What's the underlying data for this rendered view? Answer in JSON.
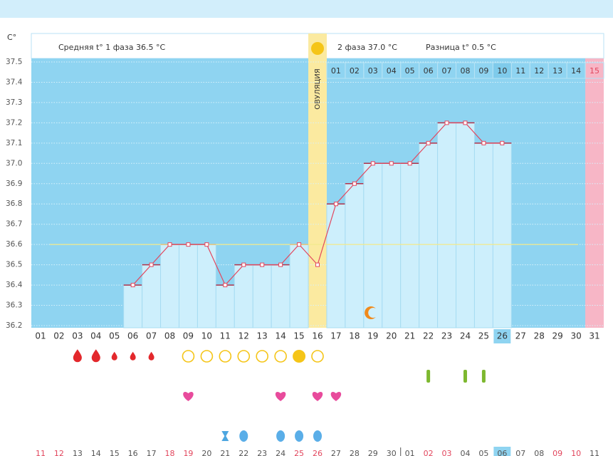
{
  "chart_data": {
    "type": "line",
    "y_label": "C°",
    "header": {
      "phase1": "Средняя t° 1 фаза 36.5 °C",
      "phase2": "2 фаза 37.0 °C",
      "difference": "Разница t° 0.5 °C"
    },
    "ovulation_label": "ОВУЛЯЦИЯ",
    "categories": [
      "01",
      "02",
      "03",
      "04",
      "05",
      "06",
      "07",
      "08",
      "09",
      "10",
      "11",
      "12",
      "13",
      "14",
      "15",
      "16",
      "17",
      "18",
      "19",
      "20",
      "21",
      "22",
      "23",
      "24",
      "25",
      "26",
      "27",
      "28",
      "29",
      "30",
      "31"
    ],
    "phase2_days": [
      null,
      null,
      null,
      null,
      null,
      null,
      null,
      null,
      null,
      null,
      null,
      null,
      null,
      null,
      null,
      null,
      "01",
      "02",
      "03",
      "04",
      "05",
      "06",
      "07",
      "08",
      "09",
      "10",
      "11",
      "12",
      "13",
      "14",
      "15"
    ],
    "column_styles": [
      null,
      null,
      null,
      null,
      null,
      null,
      null,
      null,
      null,
      null,
      null,
      null,
      null,
      null,
      null,
      "ovulation",
      null,
      null,
      null,
      null,
      null,
      null,
      null,
      null,
      null,
      "today",
      null,
      null,
      null,
      null,
      "pink"
    ],
    "series": [
      {
        "color": "#e2475e",
        "values": [
          null,
          null,
          null,
          null,
          null,
          36.4,
          36.5,
          36.6,
          36.6,
          36.6,
          36.4,
          36.5,
          36.5,
          36.5,
          36.6,
          36.5,
          36.8,
          36.9,
          37.0,
          37.0,
          37.0,
          37.1,
          37.2,
          37.2,
          37.1,
          37.1,
          null,
          null,
          null,
          null,
          null
        ]
      }
    ],
    "coverline": 36.6,
    "ylim": [
      36.2,
      37.5
    ],
    "yticks": [
      36.2,
      36.3,
      36.4,
      36.5,
      36.6,
      36.7,
      36.8,
      36.9,
      {
        "value": 37,
        "label": "37.0"
      },
      37.1,
      37.2,
      37.3,
      37.4,
      37.5
    ],
    "grid": true,
    "plot_icons": [
      null,
      null,
      null,
      null,
      null,
      null,
      null,
      null,
      null,
      null,
      null,
      null,
      null,
      null,
      null,
      null,
      null,
      null,
      "moon",
      null,
      null,
      null,
      null,
      null,
      null,
      null,
      null,
      null,
      null,
      null,
      null
    ],
    "marker_rows": [
      [
        null,
        null,
        "blood-l",
        "blood-l",
        "blood-s",
        "blood-s",
        "blood-s",
        null,
        "circle",
        "circle",
        "circle",
        "circle",
        "circle",
        "circle",
        "circle-filled",
        "circle",
        null,
        null,
        null,
        null,
        null,
        null,
        null,
        null,
        null,
        null,
        null,
        null,
        null,
        null,
        null
      ],
      [
        null,
        null,
        null,
        null,
        null,
        null,
        null,
        null,
        null,
        null,
        null,
        null,
        null,
        null,
        null,
        null,
        null,
        null,
        null,
        null,
        null,
        "bar",
        null,
        "bar",
        "bar",
        null,
        null,
        null,
        null,
        null,
        null
      ],
      [
        null,
        null,
        null,
        null,
        null,
        null,
        null,
        null,
        "heart",
        null,
        null,
        null,
        null,
        "heart",
        null,
        "heart",
        "heart",
        null,
        null,
        null,
        null,
        null,
        null,
        null,
        null,
        null,
        null,
        null,
        null,
        null,
        null
      ],
      [
        null,
        null,
        null,
        null,
        null,
        null,
        null,
        null,
        null,
        null,
        null,
        null,
        null,
        null,
        null,
        null,
        null,
        null,
        null,
        null,
        null,
        null,
        null,
        null,
        null,
        null,
        null,
        null,
        null,
        null,
        null
      ],
      [
        null,
        null,
        null,
        null,
        null,
        null,
        null,
        null,
        null,
        null,
        "hourglass",
        "drop",
        null,
        "drop",
        "drop",
        "drop",
        null,
        null,
        null,
        null,
        null,
        null,
        null,
        null,
        null,
        null,
        null,
        null,
        null,
        null,
        null
      ]
    ],
    "dates": [
      "11",
      "12",
      "13",
      "14",
      "15",
      "16",
      "17",
      "18",
      "19",
      "20",
      "21",
      "22",
      "23",
      "24",
      "25",
      "26",
      "27",
      "28",
      "29",
      "30",
      "01",
      "02",
      "03",
      "04",
      "05",
      "06",
      "07",
      "08",
      "09",
      "10",
      "11"
    ],
    "date_colors": [
      "#e2475e",
      "#e2475e",
      "#555",
      "#555",
      "#555",
      "#555",
      "#555",
      "#e2475e",
      "#e2475e",
      "#555",
      "#555",
      "#555",
      "#555",
      "#555",
      "#e2475e",
      "#e2475e",
      "#555",
      "#555",
      "#555",
      "#555",
      "#555",
      "#e2475e",
      "#e2475e",
      "#555",
      "#555",
      "#555",
      "#555",
      "#555",
      "#e2475e",
      "#e2475e",
      "#555"
    ]
  }
}
